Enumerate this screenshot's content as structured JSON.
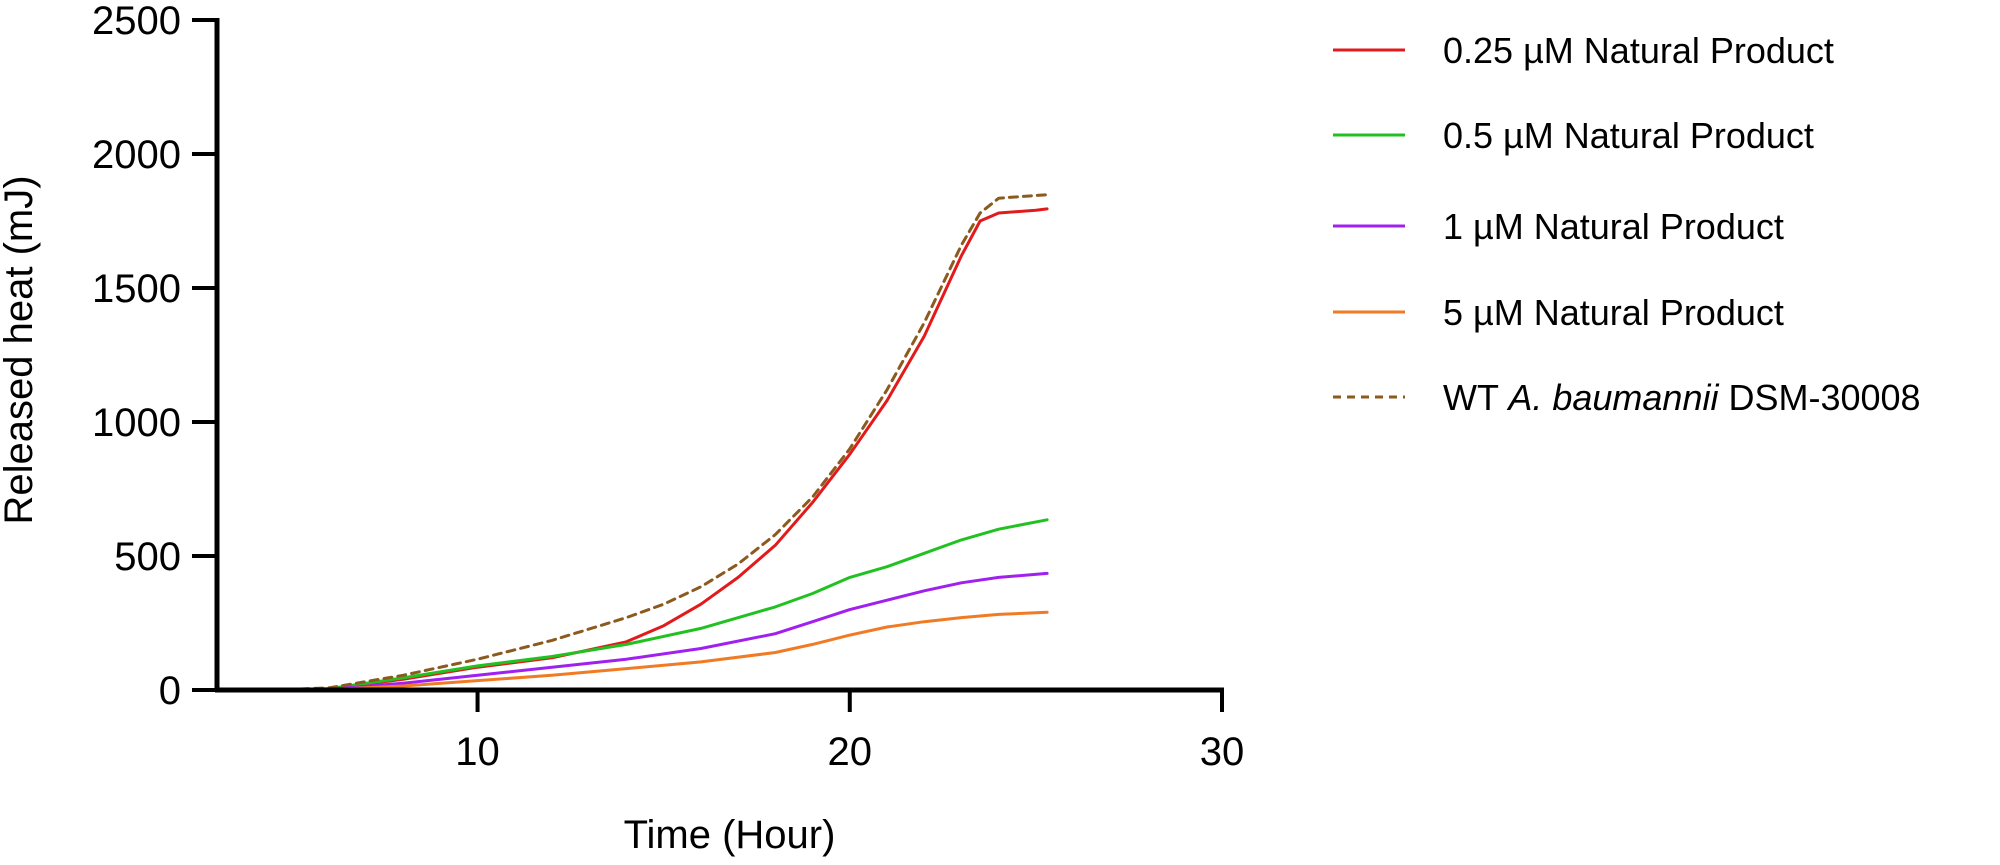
{
  "chart_data": {
    "type": "line",
    "xlabel": "Time (Hour)",
    "ylabel": "Released heat (mJ)",
    "xlim": [
      3,
      30
    ],
    "ylim": [
      0,
      2500
    ],
    "x_ticks": [
      10,
      20,
      30
    ],
    "x_tick_labels": [
      "10",
      "20",
      "30"
    ],
    "y_ticks": [
      0,
      500,
      1000,
      1500,
      2000,
      2500
    ],
    "y_tick_labels": [
      "0",
      "500",
      "1000",
      "1500",
      "2000",
      "2500"
    ],
    "grid": false,
    "legend_position": "right",
    "series": [
      {
        "name": "0.25 µM Natural Product",
        "color": "#e31a1c",
        "style": "solid",
        "points": [
          [
            4.5,
            0
          ],
          [
            6,
            5
          ],
          [
            8,
            40
          ],
          [
            10,
            85
          ],
          [
            12,
            120
          ],
          [
            14,
            180
          ],
          [
            15,
            240
          ],
          [
            16,
            320
          ],
          [
            17,
            420
          ],
          [
            18,
            540
          ],
          [
            19,
            700
          ],
          [
            20,
            880
          ],
          [
            21,
            1080
          ],
          [
            22,
            1320
          ],
          [
            23,
            1620
          ],
          [
            23.5,
            1750
          ],
          [
            24,
            1780
          ],
          [
            25,
            1790
          ],
          [
            25.3,
            1795
          ]
        ]
      },
      {
        "name": "0.5 µM Natural Product",
        "color": "#22c122",
        "style": "solid",
        "points": [
          [
            4.5,
            0
          ],
          [
            6,
            5
          ],
          [
            8,
            45
          ],
          [
            10,
            90
          ],
          [
            12,
            125
          ],
          [
            14,
            170
          ],
          [
            16,
            230
          ],
          [
            18,
            310
          ],
          [
            19,
            360
          ],
          [
            20,
            420
          ],
          [
            21,
            460
          ],
          [
            22,
            510
          ],
          [
            23,
            560
          ],
          [
            24,
            600
          ],
          [
            25.3,
            635
          ]
        ]
      },
      {
        "name": "1 µM Natural Product",
        "color": "#a020f0",
        "style": "solid",
        "points": [
          [
            4.5,
            0
          ],
          [
            6,
            3
          ],
          [
            8,
            25
          ],
          [
            10,
            55
          ],
          [
            12,
            85
          ],
          [
            14,
            115
          ],
          [
            16,
            155
          ],
          [
            18,
            210
          ],
          [
            19,
            255
          ],
          [
            20,
            300
          ],
          [
            21,
            335
          ],
          [
            22,
            370
          ],
          [
            23,
            400
          ],
          [
            24,
            420
          ],
          [
            25.3,
            435
          ]
        ]
      },
      {
        "name": "5 µM Natural Product",
        "color": "#f07b24",
        "style": "solid",
        "points": [
          [
            4.5,
            0
          ],
          [
            6,
            2
          ],
          [
            8,
            15
          ],
          [
            10,
            35
          ],
          [
            12,
            55
          ],
          [
            14,
            80
          ],
          [
            16,
            105
          ],
          [
            18,
            140
          ],
          [
            19,
            170
          ],
          [
            20,
            205
          ],
          [
            21,
            235
          ],
          [
            22,
            255
          ],
          [
            23,
            270
          ],
          [
            24,
            282
          ],
          [
            25.3,
            290
          ]
        ]
      },
      {
        "name": "WT A. baumannii DSM-30008",
        "name_prefix": "WT ",
        "name_italic": "A. baumannii",
        "name_suffix": " DSM-30008",
        "color": "#8b5a1e",
        "style": "dashed",
        "points": [
          [
            4.5,
            0
          ],
          [
            6,
            8
          ],
          [
            8,
            55
          ],
          [
            10,
            115
          ],
          [
            12,
            185
          ],
          [
            14,
            270
          ],
          [
            15,
            320
          ],
          [
            16,
            385
          ],
          [
            17,
            470
          ],
          [
            18,
            580
          ],
          [
            19,
            720
          ],
          [
            20,
            900
          ],
          [
            21,
            1120
          ],
          [
            22,
            1370
          ],
          [
            23,
            1660
          ],
          [
            23.5,
            1780
          ],
          [
            24,
            1835
          ],
          [
            25.3,
            1848
          ]
        ]
      }
    ]
  }
}
